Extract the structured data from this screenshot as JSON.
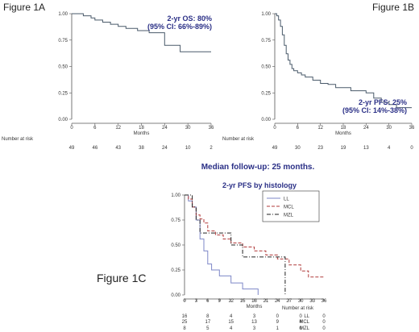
{
  "figure_labels": {
    "a": "Figure 1A",
    "b": "Figure 1B",
    "c": "Figure 1C"
  },
  "median_followup": "Median follow-up: 25 months.",
  "colors": {
    "curve": "#4a5a6a",
    "annotation": "#2a2f86",
    "ll": "#7d87c7",
    "mcl": "#b03a3a",
    "mzl": "#222222",
    "axis": "#555555"
  },
  "chart_data": [
    {
      "id": "1A",
      "type": "line",
      "xlabel": "Months",
      "ylabel": "",
      "xlim": [
        0,
        36
      ],
      "ylim": [
        0,
        1
      ],
      "xticks": [
        0,
        6,
        12,
        18,
        24,
        30,
        36
      ],
      "xtick_labels": [
        "0",
        "6",
        "12",
        "18",
        "24",
        "30",
        "36"
      ],
      "yticks": [
        0,
        0.25,
        0.5,
        0.75,
        1
      ],
      "ytick_labels": [
        "0.00",
        "0.25",
        "0.50",
        "0.75",
        "1.00"
      ],
      "annotation": [
        "2-yr OS: 80%",
        "(95% CI: 66%-89%)"
      ],
      "series": [
        {
          "x": [
            0,
            2,
            3,
            5,
            6,
            8,
            10,
            12,
            14,
            17,
            20,
            24,
            24,
            28,
            36
          ],
          "y": [
            1.0,
            1.0,
            0.98,
            0.96,
            0.94,
            0.92,
            0.9,
            0.88,
            0.86,
            0.84,
            0.82,
            0.8,
            0.7,
            0.64,
            0.64
          ]
        }
      ],
      "risk_table": {
        "title": "Number at risk",
        "rows": [
          {
            "label": "",
            "values": [
              "49",
              "46",
              "43",
              "38",
              "24",
              "10",
              "2"
            ]
          }
        ]
      }
    },
    {
      "id": "1B",
      "type": "line",
      "xlabel": "Months",
      "ylabel": "",
      "xlim": [
        0,
        36
      ],
      "ylim": [
        0,
        1
      ],
      "xticks": [
        0,
        6,
        12,
        18,
        24,
        30,
        36
      ],
      "xtick_labels": [
        "0",
        "6",
        "12",
        "18",
        "24",
        "30",
        "36"
      ],
      "yticks": [
        0,
        0.25,
        0.5,
        0.75,
        1
      ],
      "ytick_labels": [
        "0.00",
        "0.25",
        "0.50",
        "0.75",
        "1.00"
      ],
      "annotation": [
        "2-yr PFS: 25%",
        "(95% CI: 14%-38%)"
      ],
      "series": [
        {
          "x": [
            0,
            0.5,
            1,
            1.5,
            2,
            2.5,
            3,
            3.5,
            4,
            4.5,
            5,
            6,
            7,
            8,
            10,
            12,
            14,
            16,
            20,
            24,
            26,
            28,
            30,
            32,
            36
          ],
          "y": [
            1.0,
            0.98,
            0.94,
            0.88,
            0.8,
            0.7,
            0.62,
            0.56,
            0.52,
            0.48,
            0.46,
            0.44,
            0.42,
            0.4,
            0.37,
            0.34,
            0.33,
            0.3,
            0.27,
            0.25,
            0.2,
            0.16,
            0.14,
            0.11,
            0.11
          ]
        }
      ],
      "risk_table": {
        "title": "Number at risk",
        "rows": [
          {
            "label": "",
            "values": [
              "49",
              "30",
              "23",
              "19",
              "13",
              "4",
              "0"
            ]
          }
        ]
      }
    },
    {
      "id": "1C",
      "type": "line",
      "title": "2-yr PFS by histology",
      "xlabel": "Months",
      "ylabel": "",
      "xlim": [
        0,
        36
      ],
      "ylim": [
        0,
        1
      ],
      "xticks": [
        0,
        3,
        6,
        9,
        12,
        15,
        18,
        21,
        24,
        27,
        30,
        33,
        36
      ],
      "xtick_labels": [
        "0",
        "3",
        "6",
        "9",
        "12",
        "15",
        "18",
        "21",
        "24",
        "27",
        "30",
        "33",
        "36"
      ],
      "yticks": [
        0,
        0.25,
        0.5,
        0.75,
        1
      ],
      "ytick_labels": [
        "0.00",
        "0.25",
        "0.50",
        "0.75",
        "1.00"
      ],
      "legend_position": "top-right",
      "series": [
        {
          "name": "LL",
          "style": "solid",
          "x": [
            0,
            1,
            2,
            3,
            4,
            5,
            6,
            7,
            9,
            12,
            15,
            18,
            19
          ],
          "y": [
            1.0,
            0.94,
            0.88,
            0.75,
            0.56,
            0.44,
            0.31,
            0.25,
            0.19,
            0.12,
            0.06,
            0.06,
            0.0
          ]
        },
        {
          "name": "MCL",
          "style": "dashed",
          "x": [
            0,
            1,
            2,
            3,
            4,
            5,
            6,
            8,
            10,
            12,
            15,
            18,
            21,
            24,
            27,
            30,
            32,
            36
          ],
          "y": [
            1.0,
            0.96,
            0.88,
            0.8,
            0.76,
            0.72,
            0.64,
            0.6,
            0.56,
            0.52,
            0.48,
            0.44,
            0.4,
            0.36,
            0.3,
            0.24,
            0.18,
            0.18
          ]
        },
        {
          "name": "MZL",
          "style": "dash-dot",
          "x": [
            0,
            2,
            3,
            4,
            6,
            12,
            15,
            18,
            21,
            24,
            25,
            26
          ],
          "y": [
            1.0,
            0.88,
            0.75,
            0.62,
            0.62,
            0.5,
            0.38,
            0.38,
            0.38,
            0.38,
            0.38,
            0.0
          ]
        }
      ],
      "risk_table": {
        "title": "Number at risk",
        "rows": [
          {
            "label": "LL",
            "values": [
              "16",
              "8",
              "4",
              "3",
              "0",
              "0",
              "0"
            ]
          },
          {
            "label": "MCL",
            "values": [
              "25",
              "17",
              "15",
              "13",
              "9",
              "4",
              "0"
            ]
          },
          {
            "label": "MZL",
            "values": [
              "8",
              "5",
              "4",
              "3",
              "1",
              "0",
              "0"
            ]
          }
        ]
      }
    }
  ]
}
